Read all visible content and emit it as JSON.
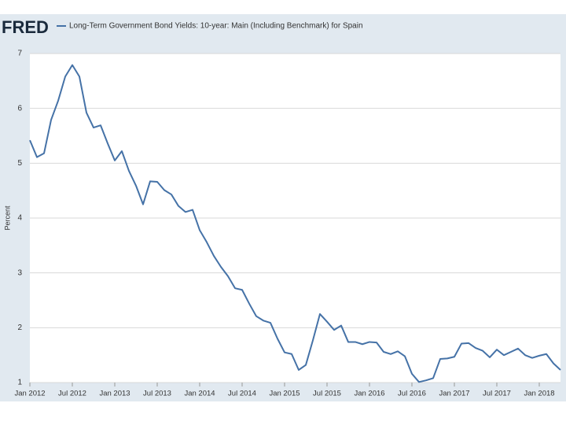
{
  "chart_data": {
    "type": "line",
    "logo": "FRED",
    "ylabel": "Percent",
    "x": [
      "2012-01",
      "2012-02",
      "2012-03",
      "2012-04",
      "2012-05",
      "2012-06",
      "2012-07",
      "2012-08",
      "2012-09",
      "2012-10",
      "2012-11",
      "2012-12",
      "2013-01",
      "2013-02",
      "2013-03",
      "2013-04",
      "2013-05",
      "2013-06",
      "2013-07",
      "2013-08",
      "2013-09",
      "2013-10",
      "2013-11",
      "2013-12",
      "2014-01",
      "2014-02",
      "2014-03",
      "2014-04",
      "2014-05",
      "2014-06",
      "2014-07",
      "2014-08",
      "2014-09",
      "2014-10",
      "2014-11",
      "2014-12",
      "2015-01",
      "2015-02",
      "2015-03",
      "2015-04",
      "2015-05",
      "2015-06",
      "2015-07",
      "2015-08",
      "2015-09",
      "2015-10",
      "2015-11",
      "2015-12",
      "2016-01",
      "2016-02",
      "2016-03",
      "2016-04",
      "2016-05",
      "2016-06",
      "2016-07",
      "2016-08",
      "2016-09",
      "2016-10",
      "2016-11",
      "2016-12",
      "2017-01",
      "2017-02",
      "2017-03",
      "2017-04",
      "2017-05",
      "2017-06",
      "2017-07",
      "2017-08",
      "2017-09",
      "2017-10",
      "2017-11",
      "2017-12",
      "2018-01",
      "2018-02",
      "2018-03",
      "2018-04"
    ],
    "series": [
      {
        "name": "Long-Term Government Bond Yields: 10-year: Main (Including Benchmark) for Spain",
        "color": "#4572a7",
        "values": [
          5.42,
          5.11,
          5.18,
          5.79,
          6.14,
          6.58,
          6.79,
          6.58,
          5.92,
          5.65,
          5.69,
          5.36,
          5.05,
          5.22,
          4.86,
          4.59,
          4.25,
          4.67,
          4.66,
          4.51,
          4.43,
          4.22,
          4.11,
          4.15,
          3.78,
          3.56,
          3.31,
          3.11,
          2.94,
          2.72,
          2.69,
          2.44,
          2.21,
          2.13,
          2.09,
          1.8,
          1.55,
          1.52,
          1.23,
          1.32,
          1.77,
          2.25,
          2.11,
          1.96,
          2.04,
          1.74,
          1.74,
          1.7,
          1.74,
          1.73,
          1.56,
          1.52,
          1.57,
          1.48,
          1.16,
          1.01,
          1.04,
          1.08,
          1.43,
          1.44,
          1.47,
          1.71,
          1.72,
          1.63,
          1.58,
          1.46,
          1.6,
          1.5,
          1.56,
          1.62,
          1.5,
          1.45,
          1.49,
          1.52,
          1.35,
          1.23
        ]
      }
    ],
    "ylim": [
      1,
      7
    ],
    "yticks": [
      1,
      2,
      3,
      4,
      5,
      6,
      7
    ],
    "grid": true,
    "xticks": [
      {
        "value": "2012-01",
        "label": "Jan 2012"
      },
      {
        "value": "2012-07",
        "label": "Jul 2012"
      },
      {
        "value": "2013-01",
        "label": "Jan 2013"
      },
      {
        "value": "2013-07",
        "label": "Jul 2013"
      },
      {
        "value": "2014-01",
        "label": "Jan 2014"
      },
      {
        "value": "2014-07",
        "label": "Jul 2014"
      },
      {
        "value": "2015-01",
        "label": "Jan 2015"
      },
      {
        "value": "2015-07",
        "label": "Jul 2015"
      },
      {
        "value": "2016-01",
        "label": "Jan 2016"
      },
      {
        "value": "2016-07",
        "label": "Jul 2016"
      },
      {
        "value": "2017-01",
        "label": "Jan 2017"
      },
      {
        "value": "2017-07",
        "label": "Jul 2017"
      },
      {
        "value": "2018-01",
        "label": "Jan 2018"
      }
    ]
  }
}
